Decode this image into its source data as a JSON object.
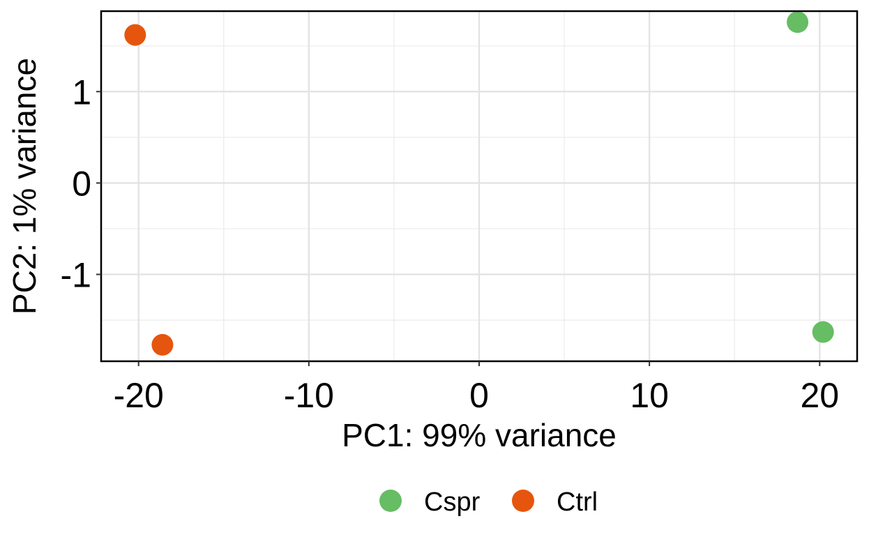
{
  "chart_data": {
    "type": "scatter",
    "xlabel": "PC1: 99% variance",
    "ylabel": "PC2: 1% variance",
    "xlim": [
      -22.2,
      22.2
    ],
    "ylim": [
      -1.95,
      1.88
    ],
    "x_ticks": [
      -20,
      -10,
      0,
      10,
      20
    ],
    "x_tick_labels": [
      "-20",
      "-10",
      "0",
      "10",
      "20"
    ],
    "y_ticks": [
      -1,
      0,
      1
    ],
    "y_tick_labels": [
      "-1",
      "0",
      "1"
    ],
    "x_minor_ticks": [
      -15,
      -5,
      5,
      15
    ],
    "y_minor_ticks": [
      -1.5,
      -0.5,
      0.5,
      1.5
    ],
    "grid": true,
    "legend_position": "bottom",
    "series": [
      {
        "name": "Cspr",
        "color": "#66BD63",
        "points": [
          {
            "x": 18.7,
            "y": 1.76
          },
          {
            "x": 20.2,
            "y": -1.63
          }
        ]
      },
      {
        "name": "Ctrl",
        "color": "#E6550D",
        "points": [
          {
            "x": -20.2,
            "y": 1.62
          },
          {
            "x": -18.6,
            "y": -1.77
          }
        ]
      }
    ]
  }
}
